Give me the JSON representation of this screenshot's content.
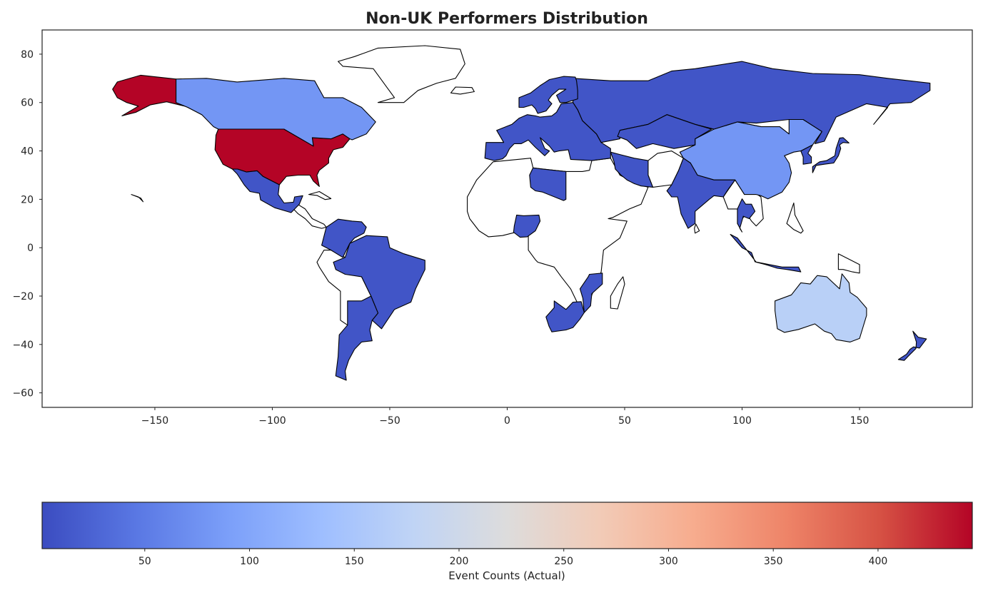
{
  "chart_data": {
    "type": "choropleth-map",
    "title": "Non-UK Performers Distribution",
    "projection": "plate-carree",
    "xlim": [
      -198,
      198
    ],
    "ylim": [
      -66,
      90
    ],
    "x_ticks": [
      -150,
      -100,
      -50,
      0,
      50,
      100,
      150
    ],
    "x_tick_labels": [
      "−150",
      "−100",
      "−50",
      "0",
      "50",
      "100",
      "150"
    ],
    "y_ticks": [
      80,
      60,
      40,
      20,
      0,
      -20,
      -40,
      -60
    ],
    "y_tick_labels": [
      "80",
      "60",
      "40",
      "20",
      "0",
      "−20",
      "−40",
      "−60"
    ],
    "colormap": "coolwarm",
    "colorbar": {
      "label": "Event Counts (Actual)",
      "range": [
        1,
        445
      ],
      "ticks": [
        50,
        100,
        150,
        200,
        250,
        300,
        350,
        400
      ],
      "tick_labels": [
        "50",
        "100",
        "150",
        "200",
        "250",
        "300",
        "350",
        "400"
      ],
      "stops": [
        "#3b4cc0",
        "#5977e3",
        "#7b9ff9",
        "#9ebeff",
        "#c0d4f5",
        "#dddcdc",
        "#f2cbb7",
        "#f7ac8e",
        "#ee8468",
        "#d65244",
        "#b40426"
      ]
    },
    "no_data_color": "#ffffff",
    "regions": [
      {
        "name": "United States",
        "value": 445
      },
      {
        "name": "Alaska",
        "value": 445
      },
      {
        "name": "Canada",
        "value": 80
      },
      {
        "name": "China",
        "value": 80
      },
      {
        "name": "Australia",
        "value": 170
      },
      {
        "name": "Russia",
        "value": 10
      },
      {
        "name": "Mexico",
        "value": 10
      },
      {
        "name": "Brazil",
        "value": 10
      },
      {
        "name": "Argentina",
        "value": 10
      },
      {
        "name": "Colombia-Venezuela",
        "value": 10
      },
      {
        "name": "India",
        "value": 10
      },
      {
        "name": "Iran",
        "value": 10
      },
      {
        "name": "Europe",
        "value": 10
      },
      {
        "name": "Scandinavia",
        "value": 10
      },
      {
        "name": "Kazakhstan",
        "value": 10
      },
      {
        "name": "Japan",
        "value": 10
      },
      {
        "name": "South Africa",
        "value": 10
      },
      {
        "name": "Mozambique",
        "value": 10
      },
      {
        "name": "Libya",
        "value": 10
      },
      {
        "name": "Nigeria",
        "value": 10
      },
      {
        "name": "Indonesia",
        "value": 10
      },
      {
        "name": "Thailand",
        "value": 10
      },
      {
        "name": "New Zealand",
        "value": 10
      },
      {
        "name": "Korea",
        "value": 10
      }
    ]
  }
}
